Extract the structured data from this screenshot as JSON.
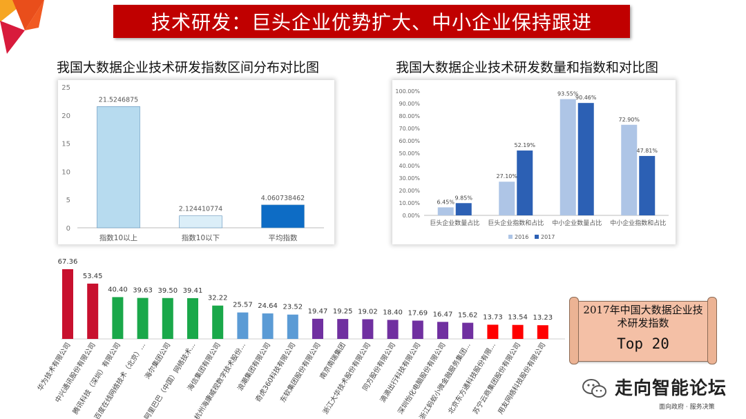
{
  "slide_title": "技术研发：巨头企业优势扩大、中小企业保持跟进",
  "colors": {
    "banner": "#c00000",
    "light_blue": "#b4d4ec",
    "mid_blue": "#1f6fc7",
    "red": "#c8102e",
    "green": "#1aa84a",
    "blue": "#5b9bd5",
    "purple": "#7030a0",
    "bright_red": "#ff0000"
  },
  "chart_data": [
    {
      "type": "bar",
      "title": "我国大数据企业技术研发指数区间分布对比图",
      "categories": [
        "指数10以上",
        "指数10以下",
        "平均指数"
      ],
      "values": [
        21.5246875,
        2.124410774,
        4.060738462
      ],
      "value_labels": [
        "21.5246875",
        "2.124410774",
        "4.060738462"
      ],
      "ylim": [
        0,
        25
      ],
      "yticks": [
        "0",
        "5",
        "10",
        "15",
        "20",
        "25"
      ],
      "bar_colors": [
        "#b7dbef",
        "#dbeef8",
        "#0d6cc5"
      ],
      "grid": false
    },
    {
      "type": "bar",
      "title": "我国大数据企业技术研发数量和指数和对比图",
      "categories": [
        "巨头企业数量占比",
        "巨头企业指数和占比",
        "中小企业数量占比",
        "中小企业指数和占比"
      ],
      "series": [
        {
          "name": "2016",
          "values": [
            6.45,
            27.1,
            93.55,
            72.9
          ],
          "labels": [
            "6.45%",
            "27.10%",
            "93.55%",
            "72.90%"
          ],
          "color": "#aec5e6"
        },
        {
          "name": "2017",
          "values": [
            9.85,
            52.19,
            90.46,
            47.81
          ],
          "labels": [
            "9.85%",
            "52.19%",
            "90.46%",
            "47.81%"
          ],
          "color": "#2c60b4"
        }
      ],
      "ylim": [
        0,
        100
      ],
      "yticks": [
        "0.00%",
        "10.00%",
        "20.00%",
        "30.00%",
        "40.00%",
        "50.00%",
        "60.00%",
        "70.00%",
        "80.00%",
        "90.00%",
        "100.00%"
      ],
      "legend": "bottom",
      "grid": false
    },
    {
      "type": "bar",
      "title": "",
      "categories": [
        "华为技术有限公司",
        "中兴通讯股份有限公司",
        "腾讯科技（深圳）有限公司",
        "百度在线网络技术（北京）...",
        "海尔集团公司",
        "阿里巴巴（中国）网络技术...",
        "海信集团有限公司",
        "杭州海康威视数字技术股份...",
        "浪潮集团有限公司",
        "奇虎360科技有限公司",
        "东软集团股份有限公司",
        "南京南瑞集团",
        "浙江大华技术股份有限公司",
        "同方股份有限公司",
        "滴滴出行科技有限公司",
        "深圳怡化电脑股份有限公司",
        "浙江蚂蚁小微金融服务集团...",
        "北京东方通科技股份有限...",
        "苏宁云商集团股份有限公司",
        "用友网络科技股份有限公司"
      ],
      "values": [
        67.36,
        53.45,
        40.4,
        39.63,
        39.5,
        39.41,
        32.22,
        25.57,
        24.64,
        23.52,
        19.47,
        19.25,
        19.02,
        18.4,
        17.69,
        16.47,
        15.62,
        13.73,
        13.54,
        13.23
      ],
      "value_labels": [
        "67.36",
        "53.45",
        "40.40",
        "39.63",
        "39.50",
        "39.41",
        "32.22",
        "25.57",
        "24.64",
        "23.52",
        "19.47",
        "19.25",
        "19.02",
        "18.40",
        "17.69",
        "16.47",
        "15.62",
        "13.73",
        "13.54",
        "13.23"
      ],
      "bar_colors": [
        "#c8102e",
        "#c8102e",
        "#1aa84a",
        "#1aa84a",
        "#1aa84a",
        "#1aa84a",
        "#1aa84a",
        "#5b9bd5",
        "#5b9bd5",
        "#5b9bd5",
        "#7030a0",
        "#7030a0",
        "#7030a0",
        "#7030a0",
        "#7030a0",
        "#7030a0",
        "#7030a0",
        "#ff0000",
        "#ff0000",
        "#ff0000"
      ],
      "ylim": [
        0,
        70
      ]
    }
  ],
  "badge": {
    "line1": "2017年中国大数据企业技",
    "line2": "术研发指数",
    "line3": "Top 20"
  },
  "watermark": {
    "text": "走向智能论坛",
    "sub": "面向政府 · 服务决策"
  }
}
